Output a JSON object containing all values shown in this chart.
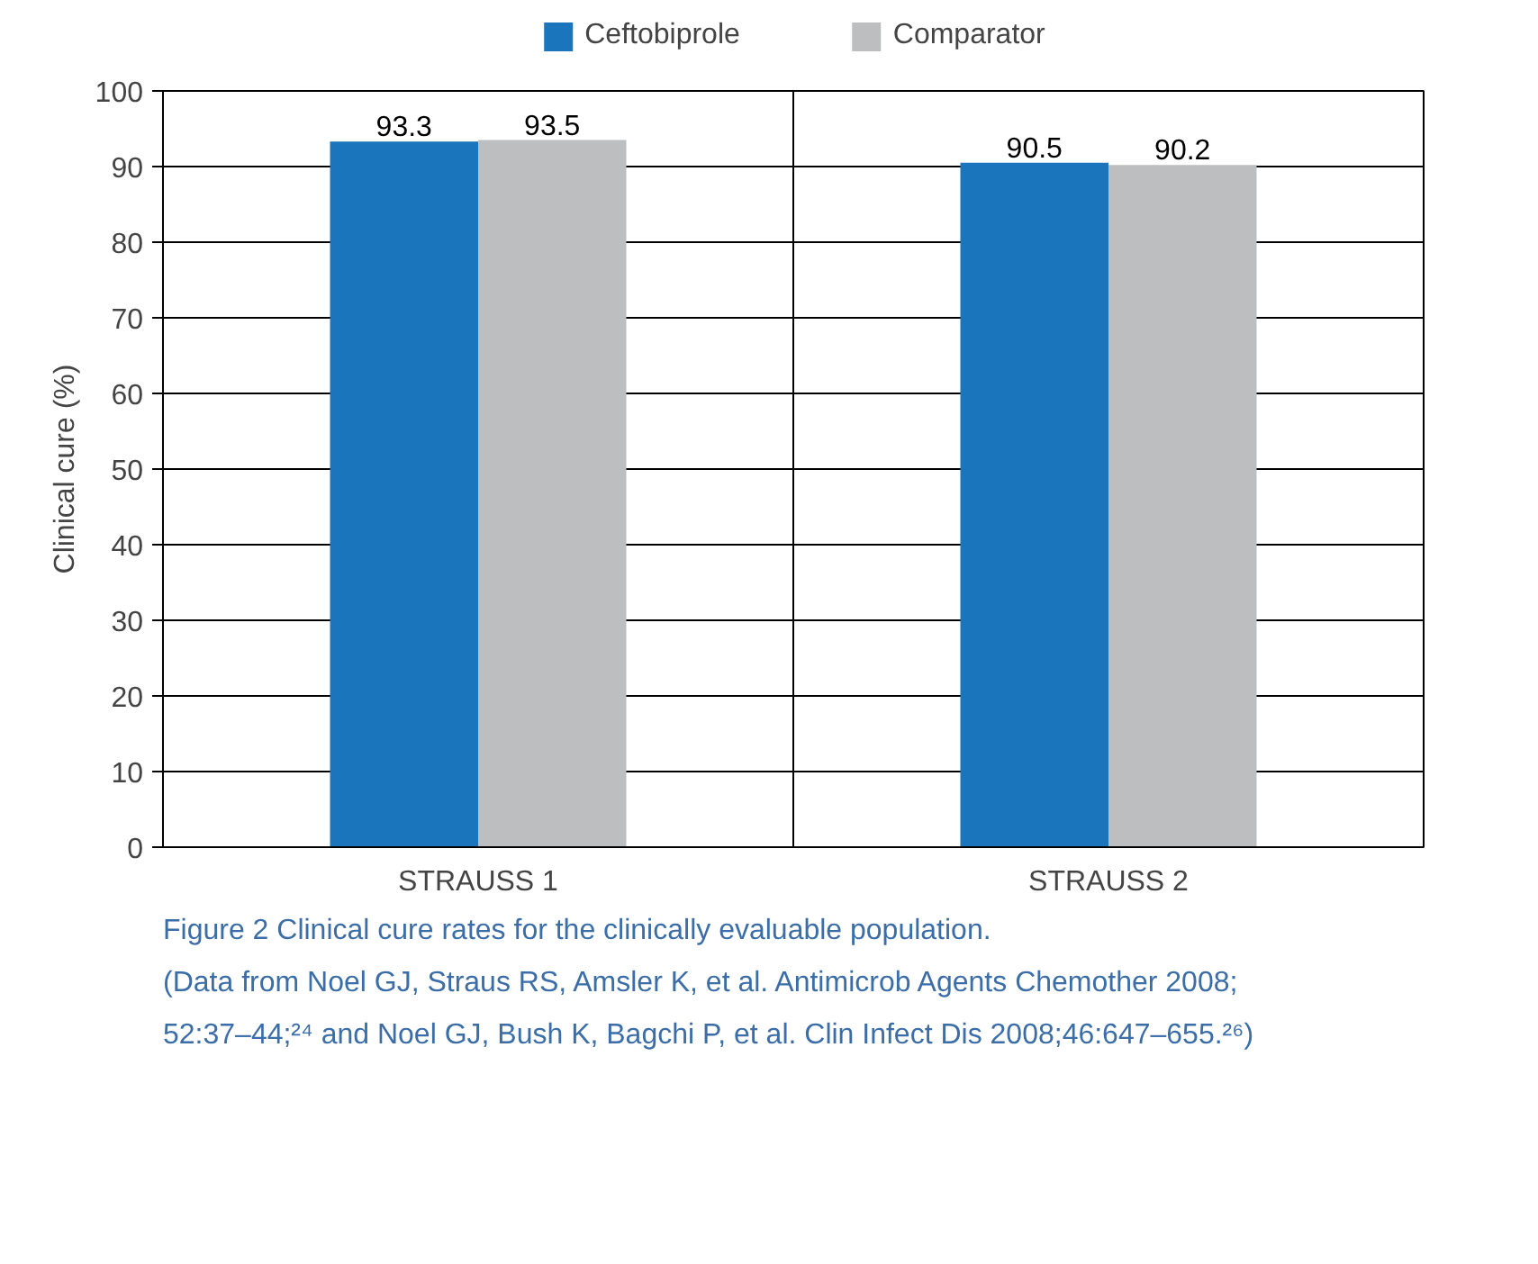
{
  "chart_data": {
    "type": "bar",
    "ylabel": "Clinical cure (%)",
    "categories": [
      "STRAUSS 1",
      "STRAUSS 2"
    ],
    "series": [
      {
        "name": "Ceftobiprole",
        "color": "#1a75bc",
        "values": [
          93.3,
          90.5
        ]
      },
      {
        "name": "Comparator",
        "color": "#bcbec0",
        "values": [
          93.5,
          90.2
        ]
      }
    ],
    "ylim": [
      0,
      100
    ],
    "yticks": [
      0,
      10,
      20,
      30,
      40,
      50,
      60,
      70,
      80,
      90,
      100
    ],
    "grid": true,
    "legend": "top",
    "data_labels": true,
    "annotations": [
      "Figure 2  Clinical cure rates for the clinically evaluable population.",
      "(Data from Noel GJ, Straus RS, Amsler K, et al. Antimicrob Agents Chemother 2008; 52:37–44;²⁴ and Noel GJ, Bush K, Bagchi P, et al. Clin Infect Dis 2008;46:647–655.²⁶)"
    ]
  }
}
